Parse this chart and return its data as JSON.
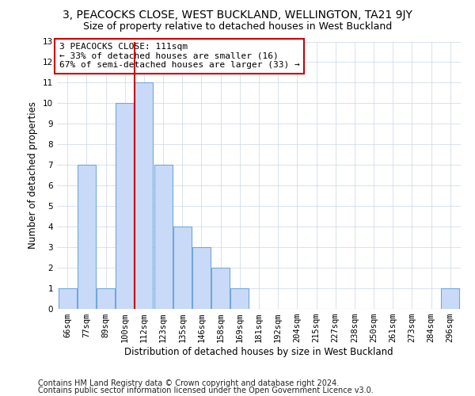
{
  "title_line1": "3, PEACOCKS CLOSE, WEST BUCKLAND, WELLINGTON, TA21 9JY",
  "title_line2": "Size of property relative to detached houses in West Buckland",
  "xlabel": "Distribution of detached houses by size in West Buckland",
  "ylabel": "Number of detached properties",
  "categories": [
    "66sqm",
    "77sqm",
    "89sqm",
    "100sqm",
    "112sqm",
    "123sqm",
    "135sqm",
    "146sqm",
    "158sqm",
    "169sqm",
    "181sqm",
    "192sqm",
    "204sqm",
    "215sqm",
    "227sqm",
    "238sqm",
    "250sqm",
    "261sqm",
    "273sqm",
    "284sqm",
    "296sqm"
  ],
  "values": [
    1,
    7,
    1,
    10,
    11,
    7,
    4,
    3,
    2,
    1,
    0,
    0,
    0,
    0,
    0,
    0,
    0,
    0,
    0,
    0,
    1
  ],
  "bar_color": "#c9daf8",
  "bar_edge_color": "#6fa8dc",
  "red_line_index": 4,
  "highlight_line_color": "#cc0000",
  "annotation_text": "3 PEACOCKS CLOSE: 111sqm\n← 33% of detached houses are smaller (16)\n67% of semi-detached houses are larger (33) →",
  "annotation_box_color": "#ffffff",
  "annotation_box_edge": "#cc0000",
  "ylim": [
    0,
    13
  ],
  "yticks": [
    0,
    1,
    2,
    3,
    4,
    5,
    6,
    7,
    8,
    9,
    10,
    11,
    12,
    13
  ],
  "grid_color": "#ccd5e8",
  "background_color": "#ffffff",
  "footer_line1": "Contains HM Land Registry data © Crown copyright and database right 2024.",
  "footer_line2": "Contains public sector information licensed under the Open Government Licence v3.0.",
  "title_fontsize": 10,
  "subtitle_fontsize": 9,
  "axis_label_fontsize": 8.5,
  "tick_fontsize": 7.5,
  "annotation_fontsize": 8,
  "footer_fontsize": 7
}
